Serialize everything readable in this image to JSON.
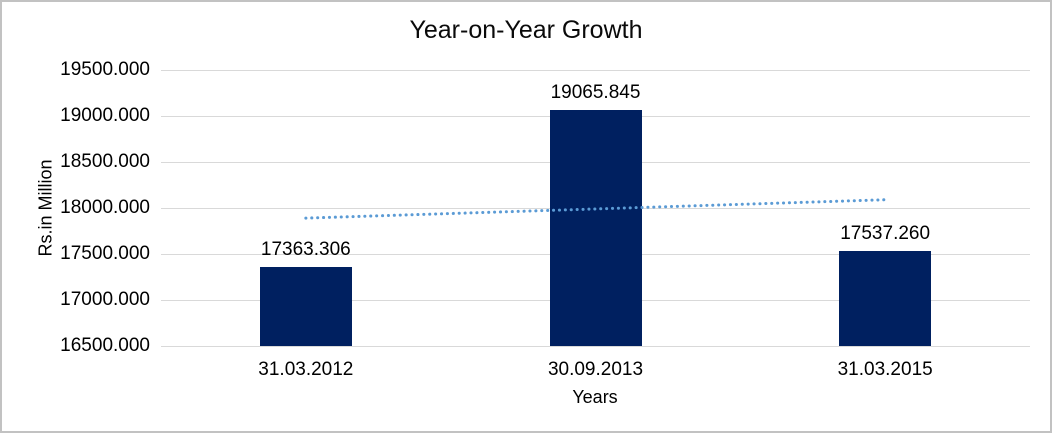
{
  "chart_data": {
    "type": "bar",
    "title": "Year-on-Year Growth",
    "xlabel": "Years",
    "ylabel": "Rs.in Million",
    "categories": [
      "31.03.2012",
      "30.09.2013",
      "31.03.2015"
    ],
    "values": [
      17363.306,
      19065.845,
      17537.26
    ],
    "data_labels": [
      "17363.306",
      "19065.845",
      "17537.260"
    ],
    "y_tick_labels": [
      "19500.000",
      "19000.000",
      "18500.000",
      "18000.000",
      "17500.000",
      "17000.000",
      "16500.000"
    ],
    "ylim": [
      16500,
      19500
    ],
    "grid": true,
    "legend_position": "none",
    "bar_color": "#002060",
    "gridline_color": "#d9d9d9",
    "trendline": {
      "style": "dotted",
      "color": "#5b9bd5",
      "start_value": 17890,
      "end_value": 18090
    }
  }
}
